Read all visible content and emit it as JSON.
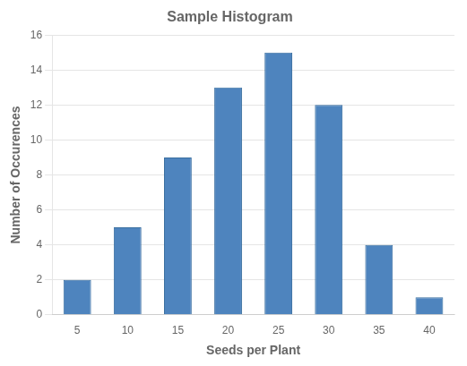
{
  "chart_data": {
    "type": "bar",
    "title": "Sample Histogram",
    "x_label": "Seeds per Plant",
    "y_label": "Number of Occurences",
    "categories": [
      5,
      10,
      15,
      20,
      25,
      30,
      35,
      40
    ],
    "values": [
      2,
      5,
      9,
      13,
      15,
      12,
      4,
      1
    ],
    "color": "#4e84be",
    "ylim": [
      0,
      16
    ],
    "yticks": [
      0,
      2,
      4,
      6,
      8,
      10,
      12,
      14,
      16
    ],
    "grid": true
  }
}
